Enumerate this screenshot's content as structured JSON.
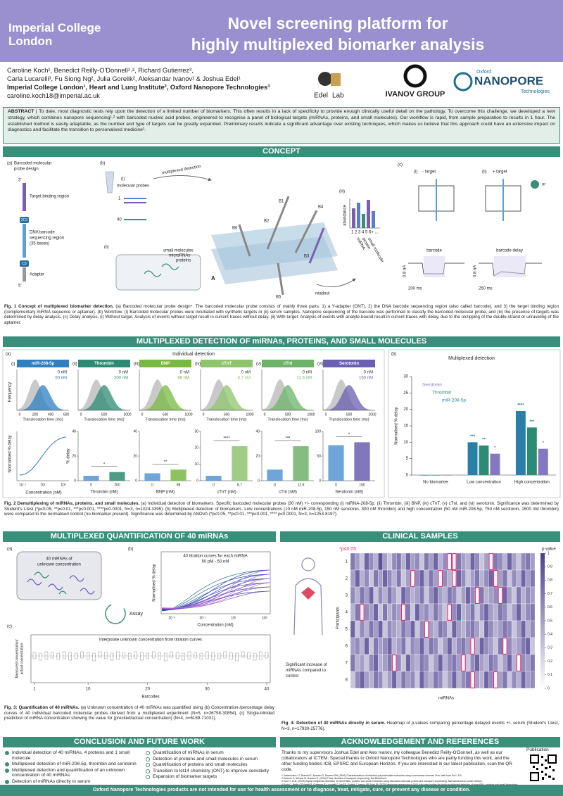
{
  "header": {
    "logo_line1": "Imperial College",
    "logo_line2": "London",
    "title_line1": "Novel screening platform for",
    "title_line2": "highly multiplexed biomarker analysis"
  },
  "authors": {
    "line1": "Caroline Koch¹, Benedict Reilly-O'Donnell¹˒², Richard Gutierrez³,",
    "line2": "Carla Lucarelli³, Fu Siong Ng², Julia Gorelik², Aleksandar Ivanov¹ & Joshua Edel¹",
    "affiliations": "Imperial College London¹, Heart and Lung Institute², Oxford Nanopore Technologies³",
    "email": "caroline.koch18@imperial.ac.uk"
  },
  "logos": {
    "edel": "Edel",
    "lab": "Lab",
    "ivanov": "IVANOV GROUP",
    "oxford": "Oxford",
    "nanopore": "NANOPORE",
    "technologies": "Technologies"
  },
  "abstract": {
    "label": "ABSTRACT",
    "text": "| To date, most diagnostic tests rely upon the detection of a limited number of biomarkers. This often results in a lack of specificity to provide enough clinically useful detail on the pathology. To overcome this challenge, we developed a new strategy, which combines nanopore sequencing¹˒² with barcoded nucleic acid probes, engineered to recognise a panel of biological targets (miRNAs, proteins, and small molecules). Our workflow is rapid, from sample preparation to results in 1 hour. The established method is easily adaptable, as the number and type of targets can be greatly expanded. Preliminary results indicate a significant advantage over existing techniques, which makes us believe that this approach could have an extensive impact on diagnostics and facilitate the transition to personalised medicine³."
  },
  "sections": {
    "concept": "CONCEPT",
    "detection": "MULTIPLEXED DETECTION OF miRNAs, PROTEINS, AND SMALL MOLECULES",
    "quantification": "MULTIPLEXED QUANTIFICATION OF 40 miRNAs",
    "clinical": "CLINICAL SAMPLES",
    "conclusion": "CONCLUSION AND FUTURE WORK",
    "acknowledgement": "ACKNOWLEDGEMENT AND REFERENCES"
  },
  "fig1": {
    "a": "(a)",
    "probe_title_1": "Barcoded molecular",
    "probe_title_2": "probe design",
    "three_prime": "3'",
    "target_region": "Target binding region",
    "c2c3": "2C3",
    "barcode_region_1": "DNA barcode",
    "barcode_region_2": "sequencing region",
    "barcode_region_3": "(35 bases)",
    "c3": "C3",
    "adapter": "Adapter",
    "five_prime": "5'",
    "b": "(b)",
    "bi": "(i)",
    "molecular_probes": "molecular probes",
    "probe_1": "1",
    "probe_40": "40",
    "multiplexed_detection": "multiplexed detection",
    "bii": "(ii)",
    "small_molecules": "small molecules",
    "micrornas": "microRNAs",
    "proteins": "proteins",
    "b1": "B1",
    "b2": "B2",
    "b3": "B3",
    "b4": "B4",
    "b5": "B5",
    "b6": "B6",
    "pore_a": "A",
    "readout": "readout",
    "biii": "(iii)",
    "abundance": "abundance",
    "abundance_ticks": "1 2 3 4 5 6+ ...",
    "mirna": "miRNA",
    "protein": "protein",
    "small_molecule": "small molecule",
    "c": "(c)",
    "ci": "(i)",
    "minus_target": "- target",
    "cii": "(ii)",
    "plus_target": "+ target",
    "or": "or",
    "barcode": "barcode",
    "barcode_delay": "barcode delay",
    "scale_current_1": "0.8 nA",
    "scale_time_1": "200 ms",
    "scale_current_2": "0.8 nA",
    "scale_time_2": "250 ms",
    "caption_label": "Fig. 1 Concept of multiplexed biomarker detection.",
    "caption": " (a) Barcoded molecular probe design⁴. The barcoded molecular probe consists of mainly three parts: 1) a Y-adapter (ONT), 2) the DNA barcode sequencing region (also called barcode), and 3) the target binding region (complementary miRNA sequence or aptamer). (b) Workflow. (i) Barcoded molecular probes were incubated with synthetic targets or (ii) serum samples. Nanopore sequencing of the barcode was performed to classify the barcoded molecular probe, and (iii) the presence of targets was determined by delay analysis. (c) Delay analysis. (i) Without target. Analysis of events without target result in current traces without delay. (ii) With target. Analysis of events with analyte-bound result in current traces with delay, due to the unzipping of the double-strand or unraveling of the aptamer."
  },
  "fig2": {
    "a": "(a)",
    "a_title": "Individual detection",
    "frequency": "Frequency",
    "translocation_time": "Translocation time (ms)",
    "curve_ylabel": "Normalised % delay",
    "curve_xlabel": "Concentration (nM)",
    "curve_ticks": [
      "10⁻¹",
      "10¹",
      "10³"
    ],
    "panels": [
      {
        "num": "(i)",
        "name": "miR-208-5p",
        "color": "#2f7fc1",
        "conc": [
          "0 nM",
          "50 nM"
        ],
        "time_ticks": [
          "0",
          "200",
          "400",
          "600"
        ]
      },
      {
        "num": "(ii)",
        "name": "Thrombin",
        "color": "#2e8b73",
        "conc": [
          "0 nM",
          "200 nM"
        ],
        "time_ticks": [
          "0",
          "500",
          "1000"
        ],
        "categories": [
          "0",
          "200"
        ],
        "values": [
          4,
          7
        ],
        "ylim": [
          0,
          40
        ],
        "yticks": [
          0,
          20,
          40
        ],
        "star": "*",
        "xlabel": "Thrombin (nM)",
        "ylabel": "% delay"
      },
      {
        "num": "(iii)",
        "name": "BNP",
        "color": "#78b843",
        "conc": [
          "0 nM",
          "98 nM"
        ],
        "time_ticks": [
          "0",
          "500",
          "1000"
        ],
        "categories": [
          "0",
          "98"
        ],
        "values": [
          6,
          9
        ],
        "ylim": [
          0,
          40
        ],
        "yticks": [
          0,
          20,
          40
        ],
        "star": "**",
        "xlabel": "BNP (nM)"
      },
      {
        "num": "(iv)",
        "name": "cTnT",
        "color": "#8fc46c",
        "conc": [
          "0 nM",
          "8.7 nM"
        ],
        "time_ticks": [
          "0",
          "500",
          "1000"
        ],
        "categories": [
          "0",
          "8.7"
        ],
        "values": [
          3,
          21
        ],
        "ylim": [
          0,
          30
        ],
        "yticks": [
          0,
          10,
          20,
          30
        ],
        "star": "****",
        "xlabel": "cTnT (nM)"
      },
      {
        "num": "(v)",
        "name": "cTnI",
        "color": "#6db36a",
        "conc": [
          "0 nM",
          "12.6 nM"
        ],
        "time_ticks": [
          "0",
          "500",
          "1000"
        ],
        "categories": [
          "0",
          "12.6"
        ],
        "values": [
          9,
          28
        ],
        "ylim": [
          0,
          40
        ],
        "yticks": [
          0,
          20,
          40
        ],
        "star": "***",
        "xlabel": "cTnI (nM)"
      },
      {
        "num": "(vi)",
        "name": "Serotonin",
        "color": "#6a5fb0",
        "conc": [
          "0 nM",
          "150 nM"
        ],
        "time_ticks": [
          "0",
          "500",
          "1000"
        ],
        "categories": [
          "0",
          "150"
        ],
        "values": [
          72,
          78
        ],
        "ylim": [
          0,
          100
        ],
        "yticks": [
          0,
          50,
          100
        ],
        "star": "*",
        "xlabel": "Serotonin (nM)"
      }
    ],
    "caption_label": "Fig. 2 Demultiplexing of miRNAs, proteins, and small molecules.",
    "caption": " (a) Individual detection of biomarkers. Specific barcoded molecular probes (30 nM) +/- corresponding (i) miRNA-208-5p, (ii) Thrombin, (iii) BNP, (iv) cTnT, (v) cTnI, and (vi) serotonin. Significance was determined by Student's t-test (*p≤0.05, **p≤0.01, ***p≤0.001, ****p≤0.0001, N=3, n=1024-3395). (b) Multiplexed detection of biomarkers. Low concentrations (10 nM miR-208-5p, 150 nM serotonin, 300 nM thrombin) and high concentration (50 nM miR-208-5p, 750 nM serotonin, 1500 nM thrombin) were compared to the normalised control (no biomarker present). Significance was determined by ANOVA (*p≤0.05, **p≤0.01, ***p≤0.001, **** p≤0.0001, N=3, n=1253-8197)."
  },
  "fig2b": {
    "type": "bar",
    "label": "(b)",
    "title": "Multiplexed detection",
    "ylabel": "Normalised % delay",
    "categories": [
      "No biomarker",
      "Low concentration",
      "High concentration"
    ],
    "ylim": [
      0,
      30
    ],
    "yticks": [
      0,
      5,
      10,
      15,
      20,
      25,
      30
    ],
    "series": [
      {
        "name": "miR-208-5p",
        "color": "#2a7fa8",
        "values": [
          0,
          10,
          19.5
        ],
        "stars": [
          null,
          "***",
          "****"
        ]
      },
      {
        "name": "Thrombin",
        "color": "#2e8b73",
        "values": [
          0,
          9,
          14.5
        ],
        "stars": [
          null,
          "**",
          "***"
        ]
      },
      {
        "name": "Serotonin",
        "color": "#8479c0",
        "values": [
          0,
          6.5,
          8
        ],
        "stars": [
          null,
          "*",
          "*"
        ]
      }
    ]
  },
  "fig3": {
    "a": "(a)",
    "unknown_1": "40 miRNAs of",
    "unknown_2": "unknown concentration",
    "assay": "Assay",
    "b": "(b)",
    "curves_title": "40 titration curves for each miRNA",
    "curves_range": "50 pM - 50 nM",
    "ylabel": "Normalised % delay",
    "xlabel": "Concentration (nM)",
    "x_ticks": [
      "10⁻³",
      "10⁻¹",
      "10¹",
      "10³"
    ],
    "c": "(c)",
    "interpolate": "Interpolate unknown concentration from titration curves",
    "c_ylabel_1": "Measured concentration/",
    "c_ylabel_2": "actual concentration",
    "c_xlabel": "Barcodes",
    "barcode_ticks": [
      1,
      10,
      20,
      30,
      40
    ],
    "caption_label": "Fig. 3: Quantification of 40 miRNAs.",
    "caption": " (a) Unknown concentration of 40 miRNAs was quantified using (b) Concentration-/percentage delay curves of 40 individual barcoded molecular probes derived from a multiplexed experiment (N=5, n=26798-30854). (c) Single-blinded prediction of miRNA concentration showing the value for (precited/actual concentration) (N=4, n=6189-71031)."
  },
  "fig4": {
    "type": "heatmap",
    "significance": "*p≤0.05",
    "threshold": 0.05,
    "colorbar_title": "p-value",
    "ylabel": "Participants",
    "xlabel": "miRNAs",
    "rows": [
      "1",
      "2",
      "3",
      "4",
      "5",
      "6",
      "7",
      "8"
    ],
    "annotation": "Significant increase of miRNAs compared to control",
    "colorbar_ticks": [
      0,
      0.1,
      0.2,
      0.3,
      0.4,
      0.5,
      0.6,
      0.7,
      0.8,
      0.9,
      1
    ],
    "color_low": "#ffffff",
    "color_high": "#4b3f8f",
    "highlight": "#e0337a",
    "values": [
      [
        0.7,
        0.5,
        0.3,
        0.8,
        0.6,
        0.4,
        0.9,
        0.5,
        0.3,
        0.6,
        0.7,
        0.4,
        0.8,
        0.5,
        0.6,
        0.3,
        0.7,
        0.5,
        0.8,
        0.4,
        0.6,
        0.02,
        0.03,
        0.7,
        0.5,
        0.4,
        0.8,
        0.6,
        0.3,
        0.5,
        0.04,
        0.7,
        0.6,
        0.4,
        0.8,
        0.5,
        0.3,
        0.6,
        0.7,
        0.5
      ],
      [
        0.5,
        0.8,
        0.4,
        0.6,
        0.3,
        0.7,
        0.5,
        0.8,
        0.6,
        0.4,
        0.7,
        0.3,
        0.5,
        0.01,
        0.6,
        0.8,
        0.4,
        0.7,
        0.5,
        0.03,
        0.6,
        0.4,
        0.02,
        0.8,
        0.6,
        0.3,
        0.5,
        0.7,
        0.4,
        0.6,
        0.8,
        0.04,
        0.5,
        0.7,
        0.3,
        0.6,
        0.4,
        0.8,
        0.5,
        0.7
      ],
      [
        0.6,
        0.4,
        0.7,
        0.5,
        0.8,
        0.3,
        0.6,
        0.4,
        0.7,
        0.5,
        0.3,
        0.8,
        0.6,
        0.4,
        0.5,
        0.7,
        0.3,
        0.6,
        0.8,
        0.5,
        0.4,
        0.7,
        0.6,
        0.3,
        0.5,
        0.8,
        0.6,
        0.02,
        0.7,
        0.4,
        0.5,
        0.6,
        0.03,
        0.8,
        0.5,
        0.3,
        0.7,
        0.4,
        0.6,
        0.5
      ],
      [
        0.4,
        0.7,
        0.03,
        0.6,
        0.5,
        0.8,
        0.3,
        0.7,
        0.4,
        0.6,
        0.5,
        0.02,
        0.7,
        0.3,
        0.8,
        0.5,
        0.6,
        0.4,
        0.7,
        0.5,
        0.3,
        0.04,
        0.6,
        0.8,
        0.4,
        0.5,
        0.7,
        0.3,
        0.6,
        0.8,
        0.5,
        0.4,
        0.7,
        0.6,
        0.3,
        0.5,
        0.8,
        0.4,
        0.6,
        0.7
      ],
      [
        0.8,
        0.3,
        0.6,
        0.4,
        0.7,
        0.5,
        0.8,
        0.3,
        0.6,
        0.5,
        0.4,
        0.7,
        0.5,
        0.8,
        0.3,
        0.6,
        0.01,
        0.5,
        0.4,
        0.7,
        0.6,
        0.3,
        0.8,
        0.5,
        0.4,
        0.6,
        0.7,
        0.5,
        0.3,
        0.8,
        0.6,
        0.4,
        0.5,
        0.7,
        0.6,
        0.3,
        0.5,
        0.8,
        0.4,
        0.6
      ],
      [
        0.5,
        0.6,
        0.4,
        0.8,
        0.3,
        0.7,
        0.5,
        0.6,
        0.8,
        0.4,
        0.5,
        0.7,
        0.3,
        0.6,
        0.5,
        0.8,
        0.4,
        0.7,
        0.6,
        0.3,
        0.5,
        0.8,
        0.4,
        0.6,
        0.7,
        0.5,
        0.03,
        0.4,
        0.8,
        0.6,
        0.5,
        0.3,
        0.7,
        0.02,
        0.6,
        0.4,
        0.5,
        0.7,
        0.8,
        0.3
      ],
      [
        0.7,
        0.4,
        0.5,
        0.3,
        0.6,
        0.8,
        0.4,
        0.5,
        0.7,
        0.02,
        0.6,
        0.3,
        0.8,
        0.5,
        0.4,
        0.7,
        0.6,
        0.3,
        0.5,
        0.8,
        0.4,
        0.6,
        0.7,
        0.5,
        0.04,
        0.3,
        0.6,
        0.8,
        0.5,
        0.4,
        0.7,
        0.6,
        0.3,
        0.5,
        0.8,
        0.4,
        0.01,
        0.6,
        0.5,
        0.7
      ],
      [
        0.3,
        0.6,
        0.8,
        0.5,
        0.4,
        0.7,
        0.6,
        0.3,
        0.5,
        0.8,
        0.4,
        0.7,
        0.5,
        0.6,
        0.3,
        0.8,
        0.5,
        0.4,
        0.7,
        0.6,
        0.3,
        0.5,
        0.8,
        0.4,
        0.6,
        0.7,
        0.03,
        0.5,
        0.4,
        0.8,
        0.6,
        0.02,
        0.5,
        0.7,
        0.3,
        0.6,
        0.4,
        0.8,
        0.5,
        0.6
      ]
    ],
    "caption_label": "Fig. 4: Detection of 40 miRNAs directly in serum.",
    "caption": " Heatmap of p-values comparing percentage delayed events +/- serum (Student's t-test, N=3, n=17930-25776)."
  },
  "conclusion": {
    "done": [
      "Individual detection of 40 miRNAs, 4 proteins and 1 small molecule",
      "Multiplexed detection of miR-208-5p, thrombin and serotonin",
      "Multiplexed detection and quantification of an unknown concentration of 40 miRNAs",
      "Detection of miRNAs directly in serum"
    ],
    "future": [
      "Quantification of miRNAs in serum",
      "Detection of proteins and small molecules in serum",
      "Quantification of proteins and small molecules",
      "Transition to kit14 chemistry (ONT) to improve sensitivity",
      "Expansion of biomarker targets"
    ]
  },
  "acknowledgement": {
    "text": "Thanks to my supervisors Joshua Edel and Alex Ivanov, my colleague Benedict Reilly-O'Donnell, as well as our collaborators at ICTEM. Special thanks to Oxford Nanopore Technologies who are partly funding this work, and the other funding bodies ICB, EPSRC and European Horizon. If you are interested in our latest publication, scan the QR code.",
    "publication": "Publication",
    "references": [
      "1 Kasianowicz JJ, Brandin E, Branton D, Deamer DW (1996) Characterization of individual polynucleotide molecules using a membrane channel. Proc Natl Acad Sci U S A.",
      "2 Deamer D, Akeson M, Branton D. (2016) Three decades of nanopore sequencing. Nat Biotechnol.",
      "3 Koch C et al. (2023) Highly multiplexed detection of microRNAs, proteins and small molecules using barcoded molecular probes and nanopore sequencing. Nat Nanotechnol (under review).",
      "4 Koch C, Reilly-O'Donnell B, Gutierrez R, Lucarelli C, Ng FS, Gorelik J, Ivanov AP, Edel JB (2023) Nanopore sequencing of DNA-barcoded probes for highly multiplexed detection of microRNA, proteins and small biomarkers."
    ]
  },
  "footer": "Oxford Nanopore Technologies products are not intended for use for health assessment or to diagnose, treat, mitigate, cure, or prevent any disease or condition."
}
